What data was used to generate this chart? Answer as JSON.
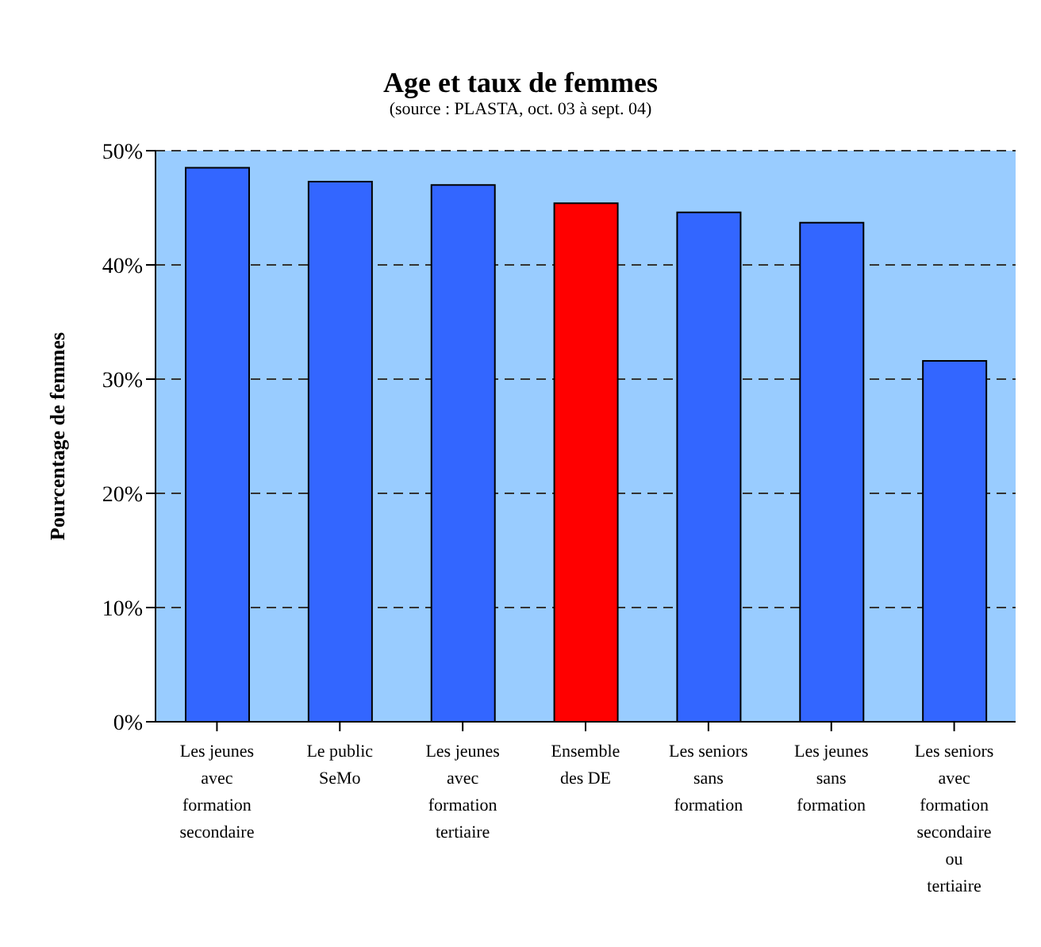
{
  "chart_data": {
    "type": "bar",
    "title": "Age et taux de femmes",
    "subtitle": "(source : PLASTA, oct. 03 à sept. 04)",
    "ylabel": "Pourcentage de femmes",
    "categories": [
      "Les jeunes avec formation secondaire",
      "Le public SeMo",
      "Les jeunes avec formation tertiaire",
      "Ensemble des DE",
      "Les seniors sans formation",
      "Les jeunes sans formation",
      "Les seniors avec formation secondaire ou tertiaire"
    ],
    "values": [
      48.5,
      47.3,
      47.0,
      45.4,
      44.6,
      43.7,
      31.6
    ],
    "colors": [
      "#3366ff",
      "#3366ff",
      "#3366ff",
      "#ff0000",
      "#3366ff",
      "#3366ff",
      "#3366ff"
    ],
    "ylim": [
      0,
      50
    ],
    "yticks": [
      {
        "value": 0,
        "label": "0%"
      },
      {
        "value": 10,
        "label": "10%"
      },
      {
        "value": 20,
        "label": "20%"
      },
      {
        "value": 30,
        "label": "30%"
      },
      {
        "value": 40,
        "label": "40%"
      },
      {
        "value": 50,
        "label": "50%"
      }
    ],
    "grid": "y",
    "legend": false
  }
}
